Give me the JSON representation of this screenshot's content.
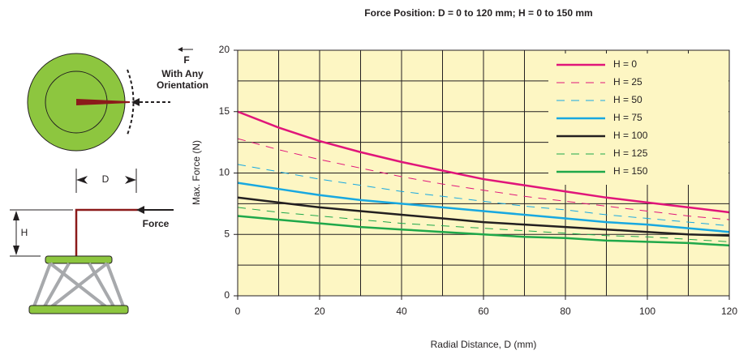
{
  "chart_data": {
    "type": "line",
    "title": "Force Position: D = 0 to 120 mm; H = 0 to 150 mm",
    "x_label": "Radial Distance, D (mm)",
    "y_label": "Max. Force (N)",
    "x": [
      0,
      10,
      20,
      30,
      40,
      50,
      60,
      70,
      80,
      90,
      100,
      110,
      120
    ],
    "series": [
      {
        "name": "H = 0",
        "color": "#e0157a",
        "dashed": false,
        "values": [
          15,
          13.7,
          12.6,
          11.7,
          10.9,
          10.2,
          9.5,
          9.0,
          8.5,
          8.0,
          7.6,
          7.2,
          6.8
        ]
      },
      {
        "name": "H = 25",
        "color": "#e0157a",
        "dashed": true,
        "values": [
          12.8,
          11.9,
          11.1,
          10.4,
          9.7,
          9.1,
          8.6,
          8.1,
          7.7,
          7.3,
          6.9,
          6.5,
          6.2
        ]
      },
      {
        "name": "H = 50",
        "color": "#18a8e0",
        "dashed": true,
        "values": [
          10.7,
          10.1,
          9.5,
          9.0,
          8.5,
          8.1,
          7.7,
          7.3,
          7.0,
          6.6,
          6.3,
          6.0,
          5.7
        ]
      },
      {
        "name": "H = 75",
        "color": "#18a8e0",
        "dashed": false,
        "values": [
          9.2,
          8.7,
          8.2,
          7.8,
          7.5,
          7.2,
          6.9,
          6.6,
          6.3,
          6.0,
          5.8,
          5.5,
          5.2
        ]
      },
      {
        "name": "H = 100",
        "color": "#231f20",
        "dashed": false,
        "values": [
          8.0,
          7.6,
          7.2,
          6.9,
          6.6,
          6.3,
          6.0,
          5.8,
          5.6,
          5.4,
          5.2,
          5.0,
          4.9
        ]
      },
      {
        "name": "H = 125",
        "color": "#1fa84a",
        "dashed": true,
        "values": [
          7.2,
          6.8,
          6.5,
          6.2,
          5.9,
          5.7,
          5.5,
          5.3,
          5.1,
          4.9,
          4.8,
          4.6,
          4.4
        ]
      },
      {
        "name": "H = 150",
        "color": "#1fa84a",
        "dashed": false,
        "values": [
          6.5,
          6.2,
          5.9,
          5.6,
          5.4,
          5.2,
          5.0,
          4.8,
          4.7,
          4.5,
          4.4,
          4.3,
          4.1
        ]
      }
    ],
    "xlim": [
      0,
      120
    ],
    "xticks": [
      0,
      20,
      40,
      60,
      80,
      100,
      120
    ],
    "ylim": [
      0,
      20
    ],
    "yticks": [
      0,
      5,
      10,
      15,
      20
    ],
    "xgrid": [
      0,
      10,
      20,
      30,
      40,
      50,
      60,
      70,
      80,
      90,
      100,
      110,
      120
    ],
    "ygrid": [
      0,
      2.5,
      5,
      7.5,
      10,
      12.5,
      15,
      17.5,
      20
    ],
    "grid": true,
    "legend": "upper right",
    "background": "#fdf6c3"
  },
  "diagram": {
    "force_letter": "F",
    "orientation_lines": [
      "With Any",
      "Orientation"
    ],
    "d_label": "D",
    "h_label": "H",
    "force_label": "Force"
  }
}
